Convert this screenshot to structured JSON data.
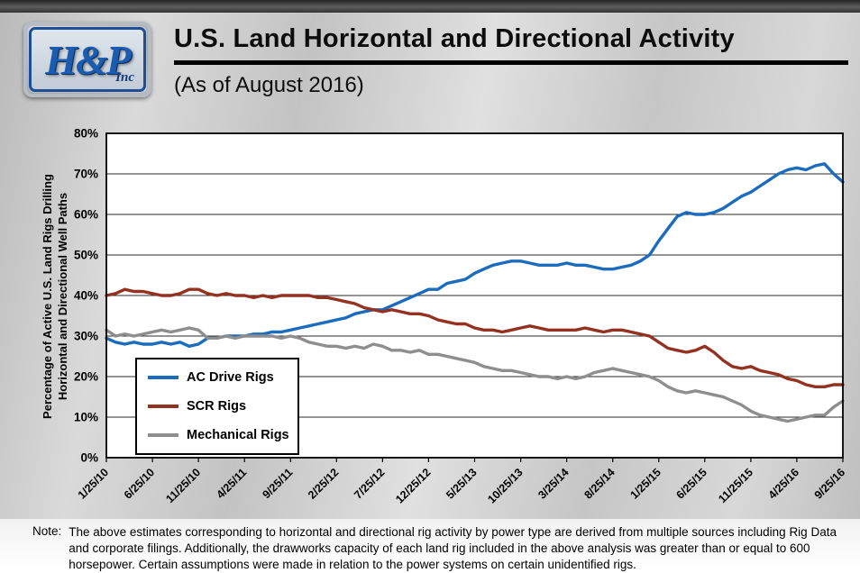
{
  "header": {
    "logo_text": "H&P",
    "logo_sub": "Inc",
    "title": "U.S. Land Horizontal and Directional Activity",
    "subtitle": "(As of August 2016)"
  },
  "chart_data": {
    "type": "line",
    "title": "U.S. Land Horizontal and Directional Activity",
    "subtitle": "(As of August 2016)",
    "ylabel": "Percentage of Active U.S. Land Rigs Drilling Horizontal and Directional Well Paths",
    "ylabel_lines": [
      "Percentage of Active U.S. Land Rigs Drilling",
      "Horizontal and Directional Well Paths"
    ],
    "ylim": [
      0,
      80
    ],
    "yticks": [
      0,
      10,
      20,
      30,
      40,
      50,
      60,
      70,
      80
    ],
    "ytick_suffix": "%",
    "grid": true,
    "legend_position": "inside-lower-left",
    "x_range": [
      0,
      80
    ],
    "x_tick_positions": [
      0,
      5,
      10,
      15,
      20,
      25,
      30,
      35,
      40,
      45,
      50,
      55,
      60,
      65,
      70,
      75,
      80
    ],
    "x_tick_labels": [
      "1/25/10",
      "6/25/10",
      "11/25/10",
      "4/25/11",
      "9/25/11",
      "2/25/12",
      "7/25/12",
      "12/25/12",
      "5/25/13",
      "10/25/13",
      "3/25/14",
      "8/25/14",
      "1/25/15",
      "6/25/15",
      "11/25/15",
      "4/25/16",
      "9/25/16"
    ],
    "series": [
      {
        "name": "AC Drive Rigs",
        "color": "#1c6cbe",
        "values": [
          29.5,
          28.5,
          28,
          28.5,
          28,
          28,
          28.5,
          28,
          28.5,
          27.5,
          28,
          29.5,
          29.5,
          30,
          30,
          30,
          30.5,
          30.5,
          31,
          31,
          31.5,
          32,
          32.5,
          33,
          33.5,
          34,
          34.5,
          35.5,
          36,
          36.5,
          36.5,
          37.5,
          38.5,
          39.5,
          40.5,
          41.5,
          41.5,
          43,
          43.5,
          44,
          45.5,
          46.5,
          47.5,
          48,
          48.5,
          48.5,
          48,
          47.5,
          47.5,
          47.5,
          48,
          47.5,
          47.5,
          47,
          46.5,
          46.5,
          47,
          47.5,
          48.5,
          50,
          53.5,
          56.5,
          59.5,
          60.5,
          60,
          60,
          60.5,
          61.5,
          63,
          64.5,
          65.5,
          67,
          68.5,
          70,
          71,
          71.5,
          71,
          72,
          72.5,
          70,
          68
        ]
      },
      {
        "name": "SCR Rigs",
        "color": "#943120",
        "values": [
          40,
          40.5,
          41.5,
          41,
          41,
          40.5,
          40,
          40,
          40.5,
          41.5,
          41.5,
          40.5,
          40,
          40.5,
          40,
          40,
          39.5,
          40,
          39.5,
          40,
          40,
          40,
          40,
          39.5,
          39.5,
          39,
          38.5,
          38,
          37,
          36.5,
          36,
          36.5,
          36,
          35.5,
          35.5,
          35,
          34,
          33.5,
          33,
          33,
          32,
          31.5,
          31.5,
          31,
          31.5,
          32,
          32.5,
          32,
          31.5,
          31.5,
          31.5,
          31.5,
          32,
          31.5,
          31,
          31.5,
          31.5,
          31,
          30.5,
          30,
          28.5,
          27,
          26.5,
          26,
          26.5,
          27.5,
          26,
          24,
          22.5,
          22,
          22.5,
          21.5,
          21,
          20.5,
          19.5,
          19,
          18,
          17.5,
          17.5,
          18,
          18
        ]
      },
      {
        "name": "Mechanical Rigs",
        "color": "#8e8e8e",
        "values": [
          31.5,
          30,
          30.5,
          30,
          30.5,
          31,
          31.5,
          31,
          31.5,
          32,
          31.5,
          29.5,
          29.5,
          30,
          29.5,
          30,
          30,
          30,
          30,
          29.5,
          30,
          29.5,
          28.5,
          28,
          27.5,
          27.5,
          27,
          27.5,
          27,
          28,
          27.5,
          26.5,
          26.5,
          26,
          26.5,
          25.5,
          25.5,
          25,
          24.5,
          24,
          23.5,
          22.5,
          22,
          21.5,
          21.5,
          21,
          20.5,
          20,
          20,
          19.5,
          20,
          19.5,
          20,
          21,
          21.5,
          22,
          21.5,
          21,
          20.5,
          20,
          19,
          17.5,
          16.5,
          16,
          16.5,
          16,
          15.5,
          15,
          14,
          13,
          11.5,
          10.5,
          10,
          9.5,
          9,
          9.5,
          10,
          10.5,
          10.5,
          12.5,
          14
        ]
      }
    ]
  },
  "note": {
    "label": "Note:",
    "text": "The above estimates corresponding to horizontal and directional rig activity by power type are derived from multiple sources including Rig Data and corporate filings.  Additionally, the drawworks capacity of each land rig included in the above analysis was greater than or equal to 600 horsepower.  Certain assumptions were made in relation to the power systems on certain unidentified rigs."
  }
}
